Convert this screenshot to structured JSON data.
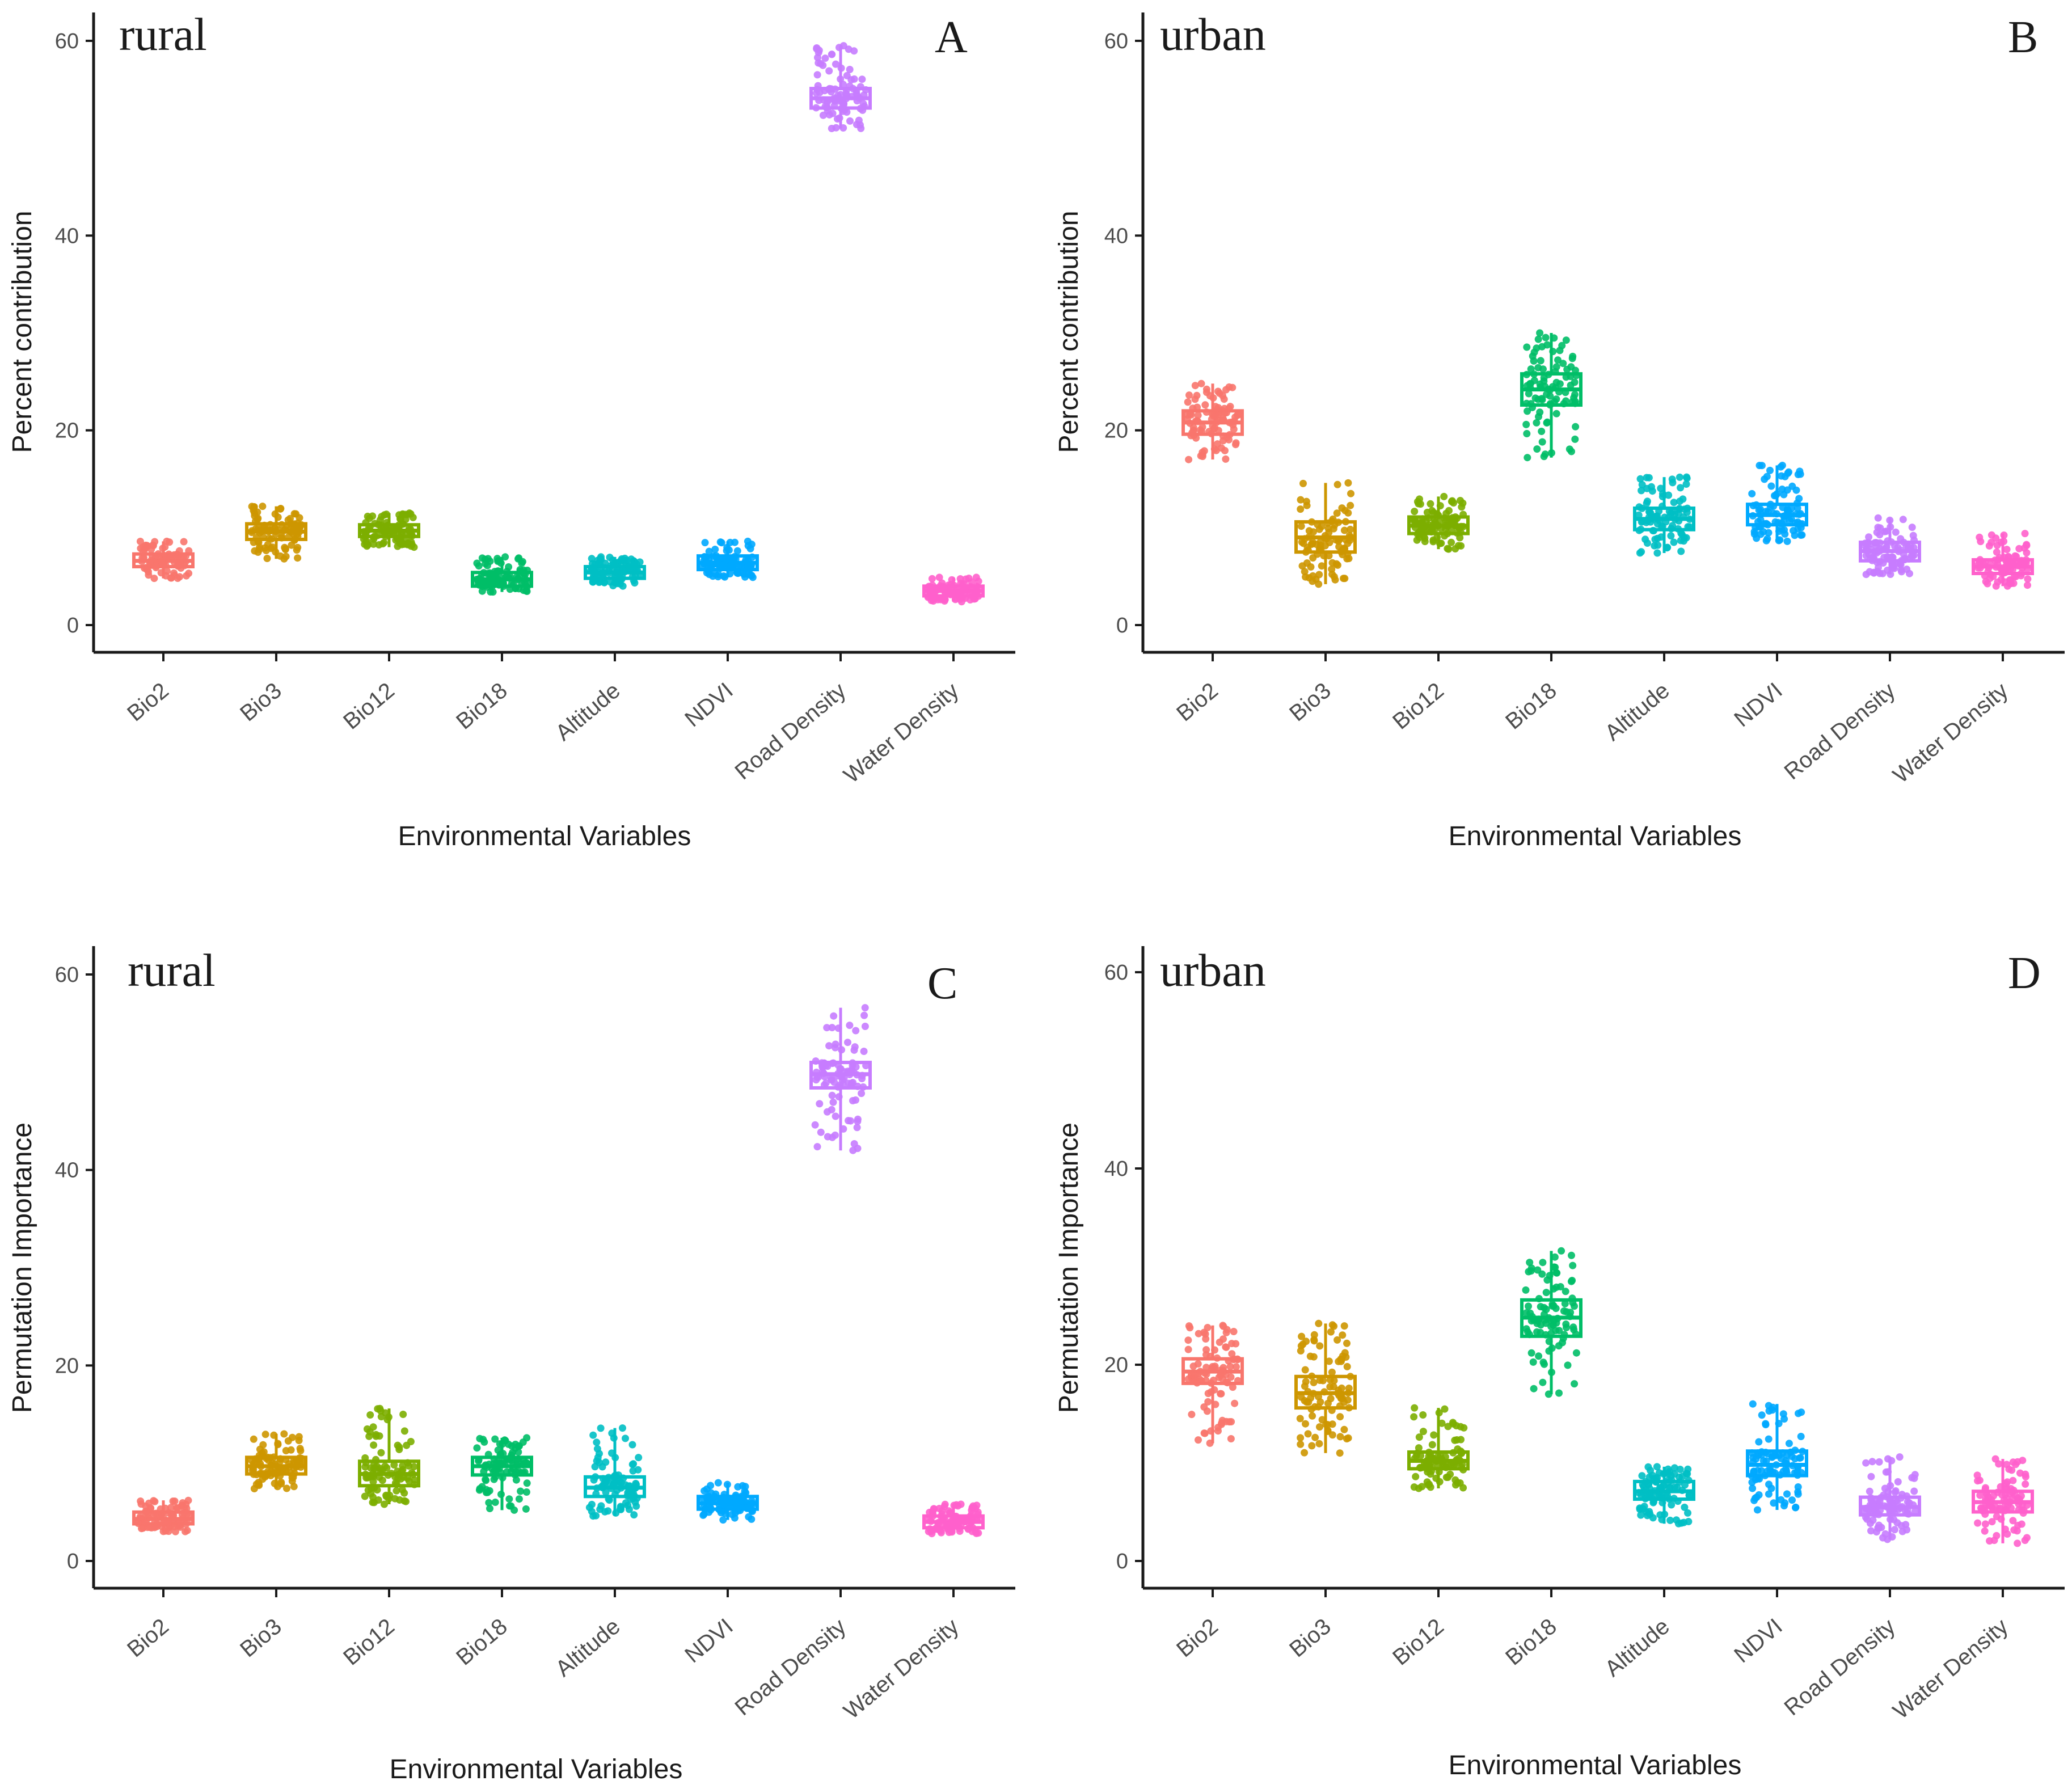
{
  "colors": [
    "#F8766D",
    "#CD9600",
    "#7CAE00",
    "#00BE67",
    "#00BFC4",
    "#00A9FF",
    "#C77CFF",
    "#FF61CC"
  ],
  "chart_data": [
    {
      "type": "box",
      "panel": "A",
      "title": "rural",
      "xlabel": "Environmental Variables",
      "ylabel": "Percent contribution",
      "ylim": [
        0,
        60
      ],
      "yticks": [
        0,
        20,
        40,
        60
      ],
      "categories": [
        "Bio2",
        "Bio3",
        "Bio12",
        "Bio18",
        "Altitude",
        "NDVI",
        "Road Density",
        "Water Density"
      ],
      "boxes": [
        {
          "min": 4.8,
          "q1": 6.0,
          "median": 6.6,
          "q3": 7.3,
          "max": 8.6
        },
        {
          "min": 6.8,
          "q1": 8.8,
          "median": 9.6,
          "q3": 10.4,
          "max": 12.2
        },
        {
          "min": 8.0,
          "q1": 9.1,
          "median": 9.7,
          "q3": 10.3,
          "max": 11.5
        },
        {
          "min": 3.4,
          "q1": 4.0,
          "median": 4.7,
          "q3": 5.4,
          "max": 7.0
        },
        {
          "min": 4.0,
          "q1": 4.8,
          "median": 5.4,
          "q3": 6.0,
          "max": 7.0
        },
        {
          "min": 4.9,
          "q1": 5.7,
          "median": 6.4,
          "q3": 7.1,
          "max": 8.6
        },
        {
          "min": 51.0,
          "q1": 53.1,
          "median": 54.1,
          "q3": 55.1,
          "max": 59.5
        },
        {
          "min": 2.4,
          "q1": 3.0,
          "median": 3.5,
          "q3": 4.0,
          "max": 4.9
        }
      ]
    },
    {
      "type": "box",
      "panel": "B",
      "title": "urban",
      "xlabel": "Environmental Variables",
      "ylabel": "Percent contribution",
      "ylim": [
        0,
        60
      ],
      "yticks": [
        0,
        20,
        40,
        60
      ],
      "categories": [
        "Bio2",
        "Bio3",
        "Bio12",
        "Bio18",
        "Altitude",
        "NDVI",
        "Road Density",
        "Water Density"
      ],
      "boxes": [
        {
          "min": 17.0,
          "q1": 19.6,
          "median": 20.8,
          "q3": 22.0,
          "max": 24.8
        },
        {
          "min": 4.2,
          "q1": 7.5,
          "median": 9.0,
          "q3": 10.6,
          "max": 14.6
        },
        {
          "min": 7.8,
          "q1": 9.4,
          "median": 10.2,
          "q3": 11.1,
          "max": 13.2
        },
        {
          "min": 17.2,
          "q1": 22.6,
          "median": 24.2,
          "q3": 25.8,
          "max": 30.0
        },
        {
          "min": 7.4,
          "q1": 9.8,
          "median": 10.9,
          "q3": 12.0,
          "max": 15.2
        },
        {
          "min": 8.6,
          "q1": 10.3,
          "median": 11.3,
          "q3": 12.4,
          "max": 16.4
        },
        {
          "min": 5.2,
          "q1": 6.6,
          "median": 7.6,
          "q3": 8.5,
          "max": 11.0
        },
        {
          "min": 4.0,
          "q1": 5.3,
          "median": 6.0,
          "q3": 6.7,
          "max": 9.4
        }
      ]
    },
    {
      "type": "box",
      "panel": "C",
      "title": "rural",
      "xlabel": "Environmental Variables",
      "ylabel": "Permutation Importance",
      "ylim": [
        0,
        60
      ],
      "yticks": [
        0,
        20,
        40,
        60
      ],
      "categories": [
        "Bio2",
        "Bio3",
        "Bio12",
        "Bio18",
        "Altitude",
        "NDVI",
        "Road Density",
        "Water Density"
      ],
      "boxes": [
        {
          "min": 3.0,
          "q1": 3.8,
          "median": 4.3,
          "q3": 5.0,
          "max": 6.2
        },
        {
          "min": 7.4,
          "q1": 8.9,
          "median": 9.7,
          "q3": 10.6,
          "max": 13.0
        },
        {
          "min": 5.8,
          "q1": 7.7,
          "median": 8.9,
          "q3": 10.2,
          "max": 15.6
        },
        {
          "min": 5.2,
          "q1": 8.8,
          "median": 9.7,
          "q3": 10.6,
          "max": 12.6
        },
        {
          "min": 4.6,
          "q1": 6.6,
          "median": 7.5,
          "q3": 8.6,
          "max": 13.6
        },
        {
          "min": 4.2,
          "q1": 5.3,
          "median": 5.9,
          "q3": 6.6,
          "max": 8.0
        },
        {
          "min": 42.0,
          "q1": 48.4,
          "median": 49.8,
          "q3": 51.0,
          "max": 56.6
        },
        {
          "min": 2.8,
          "q1": 3.4,
          "median": 4.0,
          "q3": 4.6,
          "max": 5.8
        }
      ]
    },
    {
      "type": "box",
      "panel": "D",
      "title": "urban",
      "xlabel": "Environmental Variables",
      "ylabel": "Permutation Importance",
      "ylim": [
        0,
        60
      ],
      "yticks": [
        0,
        20,
        40,
        60
      ],
      "categories": [
        "Bio2",
        "Bio3",
        "Bio12",
        "Bio18",
        "Altitude",
        "NDVI",
        "Road Density",
        "Water Density"
      ],
      "boxes": [
        {
          "min": 12.0,
          "q1": 18.1,
          "median": 19.3,
          "q3": 20.6,
          "max": 24.0
        },
        {
          "min": 11.0,
          "q1": 15.6,
          "median": 17.1,
          "q3": 18.8,
          "max": 24.2
        },
        {
          "min": 7.4,
          "q1": 9.4,
          "median": 10.2,
          "q3": 11.1,
          "max": 15.6
        },
        {
          "min": 17.0,
          "q1": 22.9,
          "median": 24.8,
          "q3": 26.6,
          "max": 31.6
        },
        {
          "min": 3.8,
          "q1": 6.3,
          "median": 7.1,
          "q3": 8.1,
          "max": 9.6
        },
        {
          "min": 5.2,
          "q1": 8.7,
          "median": 9.8,
          "q3": 11.2,
          "max": 16.0
        },
        {
          "min": 2.2,
          "q1": 4.7,
          "median": 5.5,
          "q3": 6.5,
          "max": 10.6
        },
        {
          "min": 1.8,
          "q1": 5.0,
          "median": 6.0,
          "q3": 7.1,
          "max": 10.4
        }
      ]
    }
  ]
}
